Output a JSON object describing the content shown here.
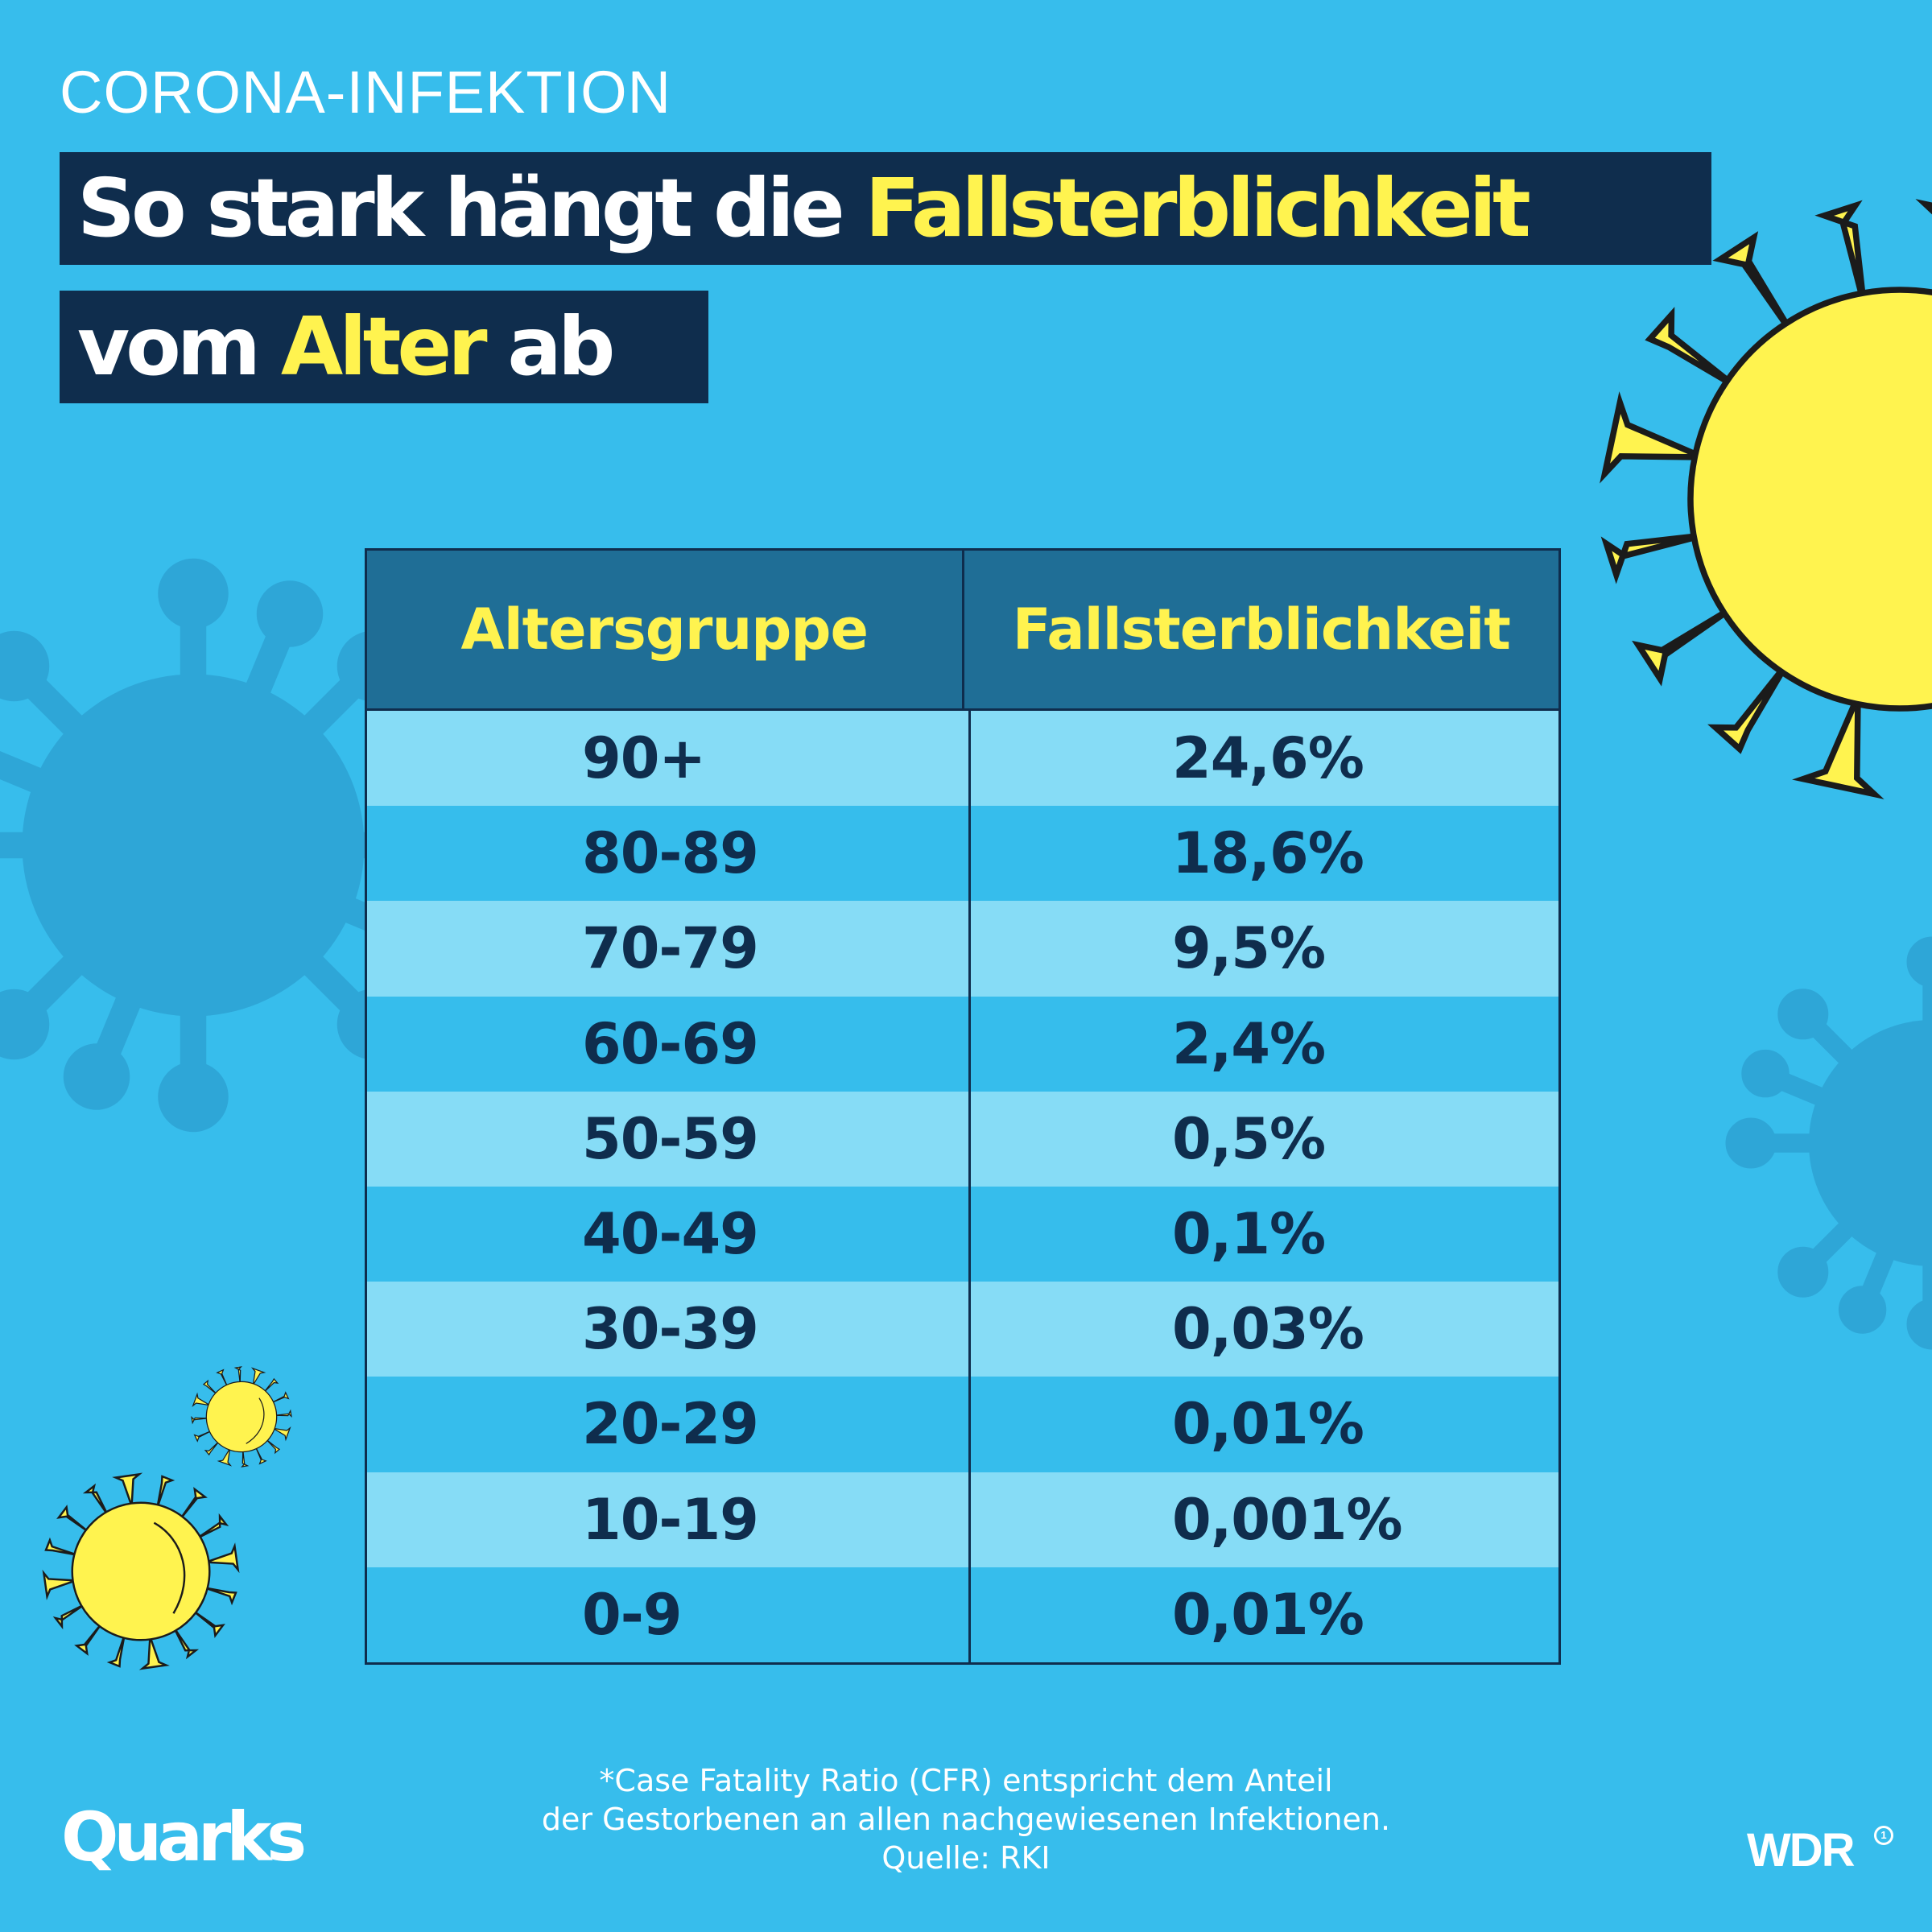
{
  "header": {
    "kicker": "CORONA-INFEKTION",
    "title_line1_plain": "So stark hängt die ",
    "title_line1_highlight": "Fallsterblichkeit",
    "title_line2_plain_before": "vom ",
    "title_line2_highlight": "Alter",
    "title_line2_plain_after": " ab"
  },
  "table": {
    "columns": [
      "Altersgruppe",
      "Fallsterblichkeit"
    ],
    "rows": [
      [
        "90+",
        "24,6%"
      ],
      [
        "80-89",
        "18,6%"
      ],
      [
        "70-79",
        "9,5%"
      ],
      [
        "60-69",
        "2,4%"
      ],
      [
        "50-59",
        "0,5%"
      ],
      [
        "40-49",
        "0,1%"
      ],
      [
        "30-39",
        "0,03%"
      ],
      [
        "20-29",
        "0,01%"
      ],
      [
        "10-19",
        "0,001%"
      ],
      [
        "0-9",
        "0,01%"
      ]
    ]
  },
  "footnote": {
    "line1": "*Case Fatality Ratio (CFR) entspricht dem Anteil",
    "line2": "der Gestorbenen an allen nachgewiesenen Infektionen.",
    "source": "Quelle: RKI"
  },
  "branding": {
    "left_logo": "Quarks",
    "right_logo": "WDR"
  },
  "colors": {
    "background": "#37bdec",
    "title_band": "#0f2d4d",
    "highlight": "#fff34f",
    "header_row": "#1f6e96",
    "row_light": "#86dcf6",
    "row_dark": "#36bdec",
    "virus_yellow": "#fff34f",
    "virus_shadow": "#2c9fd0"
  },
  "decorations": [
    "virus-icon",
    "virus-icon",
    "virus-icon",
    "virus-silhouette-icon",
    "virus-silhouette-icon"
  ]
}
